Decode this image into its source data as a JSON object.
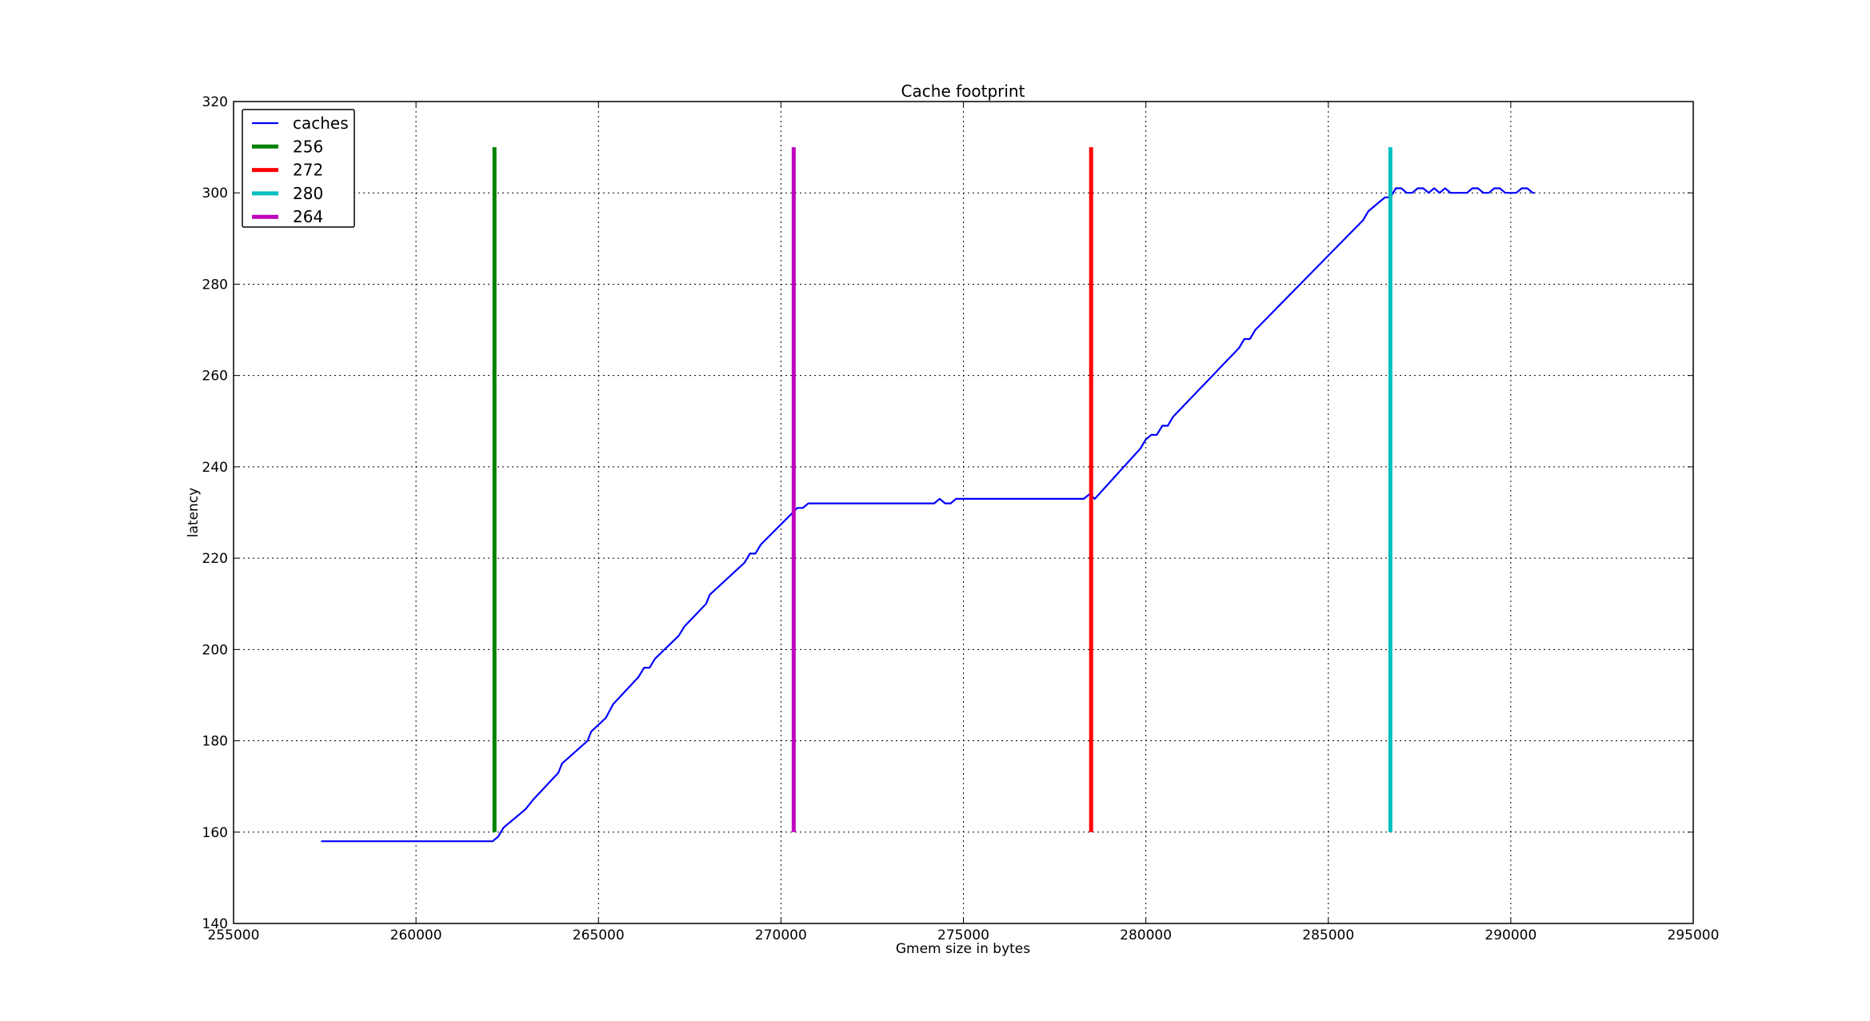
{
  "chart_data": {
    "type": "line",
    "title": "Cache footprint",
    "xlabel": "Gmem size in bytes",
    "ylabel": "latency",
    "xlim": [
      255000,
      295000
    ],
    "ylim": [
      140,
      320
    ],
    "xticks": [
      "255000",
      "260000",
      "265000",
      "270000",
      "275000",
      "280000",
      "285000",
      "290000",
      "295000"
    ],
    "yticks": [
      "140",
      "160",
      "180",
      "200",
      "220",
      "240",
      "260",
      "280",
      "300",
      "320"
    ],
    "grid": true,
    "legend_position": "top-left",
    "series": [
      {
        "name": "caches",
        "color": "#0000ff",
        "kind": "line",
        "points": [
          [
            257400,
            158
          ],
          [
            262100,
            158
          ],
          [
            262250,
            159
          ],
          [
            262400,
            161
          ],
          [
            263000,
            165
          ],
          [
            263200,
            167
          ],
          [
            263900,
            173
          ],
          [
            264000,
            175
          ],
          [
            264700,
            180
          ],
          [
            264800,
            182
          ],
          [
            265200,
            185
          ],
          [
            265400,
            188
          ],
          [
            266100,
            194
          ],
          [
            266250,
            196
          ],
          [
            266400,
            196
          ],
          [
            266550,
            198
          ],
          [
            267200,
            203
          ],
          [
            267350,
            205
          ],
          [
            267950,
            210
          ],
          [
            268050,
            212
          ],
          [
            269000,
            219
          ],
          [
            269150,
            221
          ],
          [
            269300,
            221
          ],
          [
            269450,
            223
          ],
          [
            270450,
            231
          ],
          [
            270600,
            231
          ],
          [
            270750,
            232
          ],
          [
            274200,
            232
          ],
          [
            274350,
            233
          ],
          [
            274500,
            232
          ],
          [
            274650,
            232
          ],
          [
            274800,
            233
          ],
          [
            278300,
            233
          ],
          [
            278450,
            234
          ],
          [
            278600,
            233
          ],
          [
            279850,
            244
          ],
          [
            280000,
            246
          ],
          [
            280150,
            247
          ],
          [
            280300,
            247
          ],
          [
            280450,
            249
          ],
          [
            280600,
            249
          ],
          [
            280750,
            251
          ],
          [
            282550,
            266
          ],
          [
            282700,
            268
          ],
          [
            282850,
            268
          ],
          [
            283000,
            270
          ],
          [
            285950,
            294
          ],
          [
            286100,
            296
          ],
          [
            286400,
            298
          ],
          [
            286550,
            299
          ],
          [
            286700,
            299
          ],
          [
            286850,
            301
          ],
          [
            287000,
            301
          ],
          [
            287150,
            300
          ],
          [
            287300,
            300
          ],
          [
            287450,
            301
          ],
          [
            287600,
            301
          ],
          [
            287750,
            300
          ],
          [
            287900,
            301
          ],
          [
            288050,
            300
          ],
          [
            288200,
            301
          ],
          [
            288350,
            300
          ],
          [
            288500,
            300
          ],
          [
            288650,
            300
          ],
          [
            288800,
            300
          ],
          [
            288950,
            301
          ],
          [
            289100,
            301
          ],
          [
            289250,
            300
          ],
          [
            289400,
            300
          ],
          [
            289550,
            301
          ],
          [
            289700,
            301
          ],
          [
            289850,
            300
          ],
          [
            290000,
            300
          ],
          [
            290150,
            300
          ],
          [
            290300,
            301
          ],
          [
            290450,
            301
          ],
          [
            290600,
            300
          ],
          [
            290650,
            300
          ]
        ]
      },
      {
        "name": "256",
        "color": "#008000",
        "kind": "vline",
        "x": 262150,
        "y": [
          160,
          310
        ]
      },
      {
        "name": "272",
        "color": "#ff0000",
        "kind": "vline",
        "x": 278500,
        "y": [
          160,
          310
        ]
      },
      {
        "name": "280",
        "color": "#00bfbf",
        "kind": "vline",
        "x": 286700,
        "y": [
          160,
          310
        ]
      },
      {
        "name": "264",
        "color": "#bf00bf",
        "kind": "vline",
        "x": 270350,
        "y": [
          160,
          310
        ]
      }
    ]
  }
}
